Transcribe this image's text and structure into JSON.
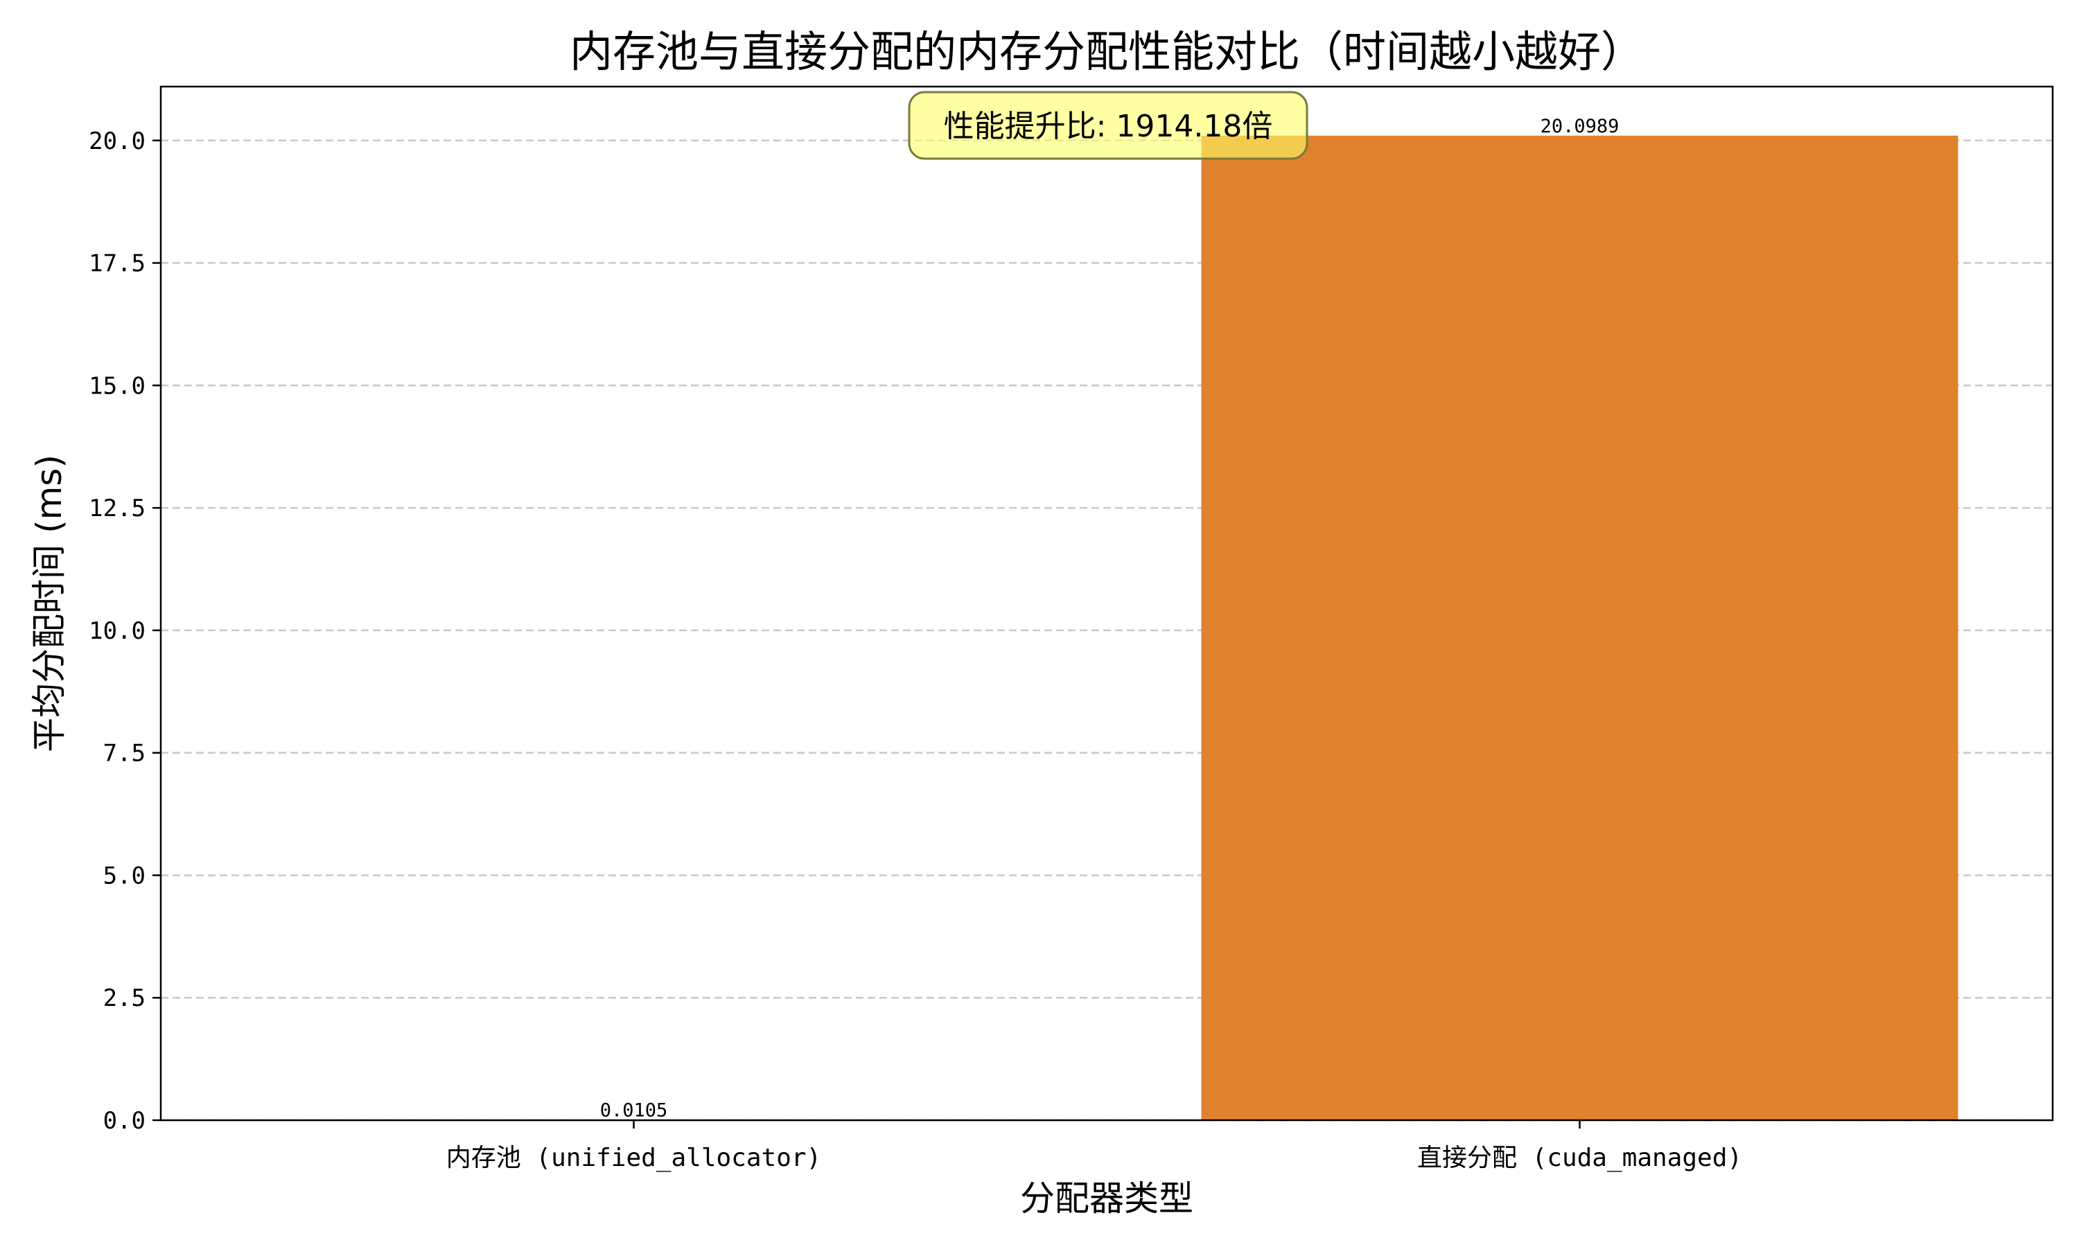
{
  "chart_data": {
    "type": "bar",
    "title": "内存池与直接分配的内存分配性能对比（时间越小越好）",
    "xlabel": "分配器类型",
    "ylabel": "平均分配时间 (ms)",
    "categories": [
      "内存池 (unified_allocator)",
      "直接分配 (cuda_managed)"
    ],
    "values": [
      0.0105,
      20.0989
    ],
    "value_labels": [
      "0.0105",
      "20.0989"
    ],
    "bar_colors": [
      "#2ca02c",
      "#e0812e"
    ],
    "ylim": [
      0,
      21.1
    ],
    "yticks": [
      0.0,
      2.5,
      5.0,
      7.5,
      10.0,
      12.5,
      15.0,
      17.5,
      20.0
    ],
    "ytick_labels": [
      "0.0",
      "2.5",
      "5.0",
      "7.5",
      "10.0",
      "12.5",
      "15.0",
      "17.5",
      "20.0"
    ],
    "grid": "y-dashed",
    "annotation": {
      "text": "性能提升比: 1914.18倍",
      "fill": "#ffff66",
      "border": "#7a7a3a"
    }
  }
}
